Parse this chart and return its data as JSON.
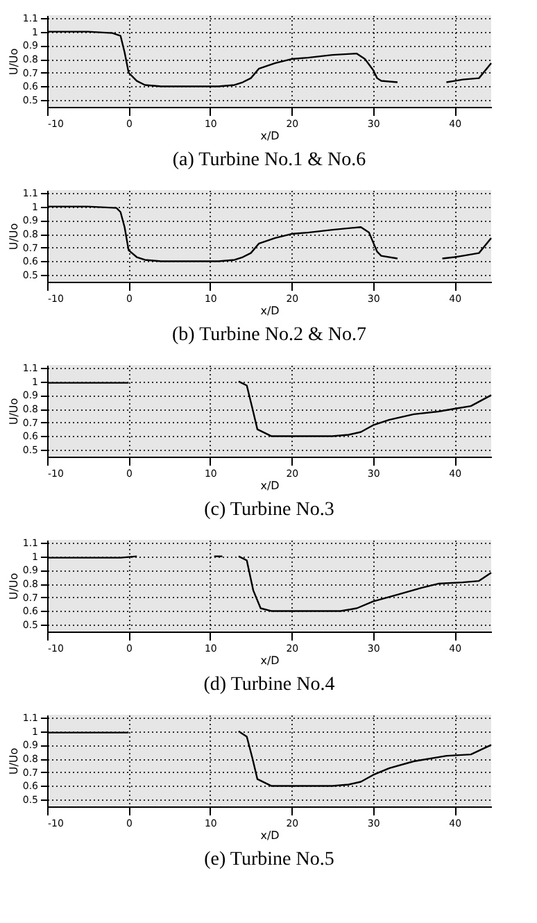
{
  "chart_data": [
    {
      "type": "line",
      "title": "(a)  Turbine No.1  & No.6",
      "xlabel": "x/D",
      "ylabel": "U/Uo",
      "xlim": [
        -10,
        44.5
      ],
      "xticks": [
        -10,
        0,
        10,
        20,
        30,
        40
      ],
      "ylim": [
        0.45,
        1.12
      ],
      "yticks": [
        1.1,
        1,
        0.9,
        0.8,
        0.7,
        0.6,
        0.5
      ],
      "grid": true,
      "line_style": "solid",
      "marker": "none",
      "series": [
        {
          "color": "#000000",
          "x": [
            -10,
            -5,
            -2,
            -1,
            -0.5,
            0,
            1,
            2,
            4,
            8,
            11,
            13,
            14,
            15,
            16,
            18,
            20,
            22,
            25,
            28,
            29,
            30,
            30.5,
            31,
            33,
            36,
            39,
            40,
            41,
            43,
            44.5
          ],
          "values": [
            1.0,
            1.0,
            0.99,
            0.97,
            0.85,
            0.7,
            0.64,
            0.61,
            0.6,
            0.6,
            0.6,
            0.61,
            0.63,
            0.66,
            0.73,
            0.77,
            0.8,
            0.81,
            0.83,
            0.84,
            0.8,
            0.72,
            0.66,
            0.64,
            0.63,
            null,
            0.63,
            0.64,
            0.65,
            0.66,
            0.77
          ]
        }
      ]
    },
    {
      "type": "line",
      "title": "(b)  Turbine No.2  & No.7",
      "xlabel": "x/D",
      "ylabel": "U/Uo",
      "xlim": [
        -10,
        44.5
      ],
      "xticks": [
        -10,
        0,
        10,
        20,
        30,
        40
      ],
      "ylim": [
        0.45,
        1.12
      ],
      "yticks": [
        1.1,
        1,
        0.9,
        0.8,
        0.7,
        0.6,
        0.5
      ],
      "grid": true,
      "line_style": "solid",
      "marker": "none",
      "series": [
        {
          "color": "#000000",
          "x": [
            -10,
            -5,
            -1.5,
            -1,
            -0.5,
            0,
            1,
            2,
            4,
            8,
            11,
            13,
            14,
            15,
            16,
            18,
            20,
            22,
            25,
            28.5,
            29.5,
            30,
            30.5,
            31,
            33,
            36,
            38.5,
            40,
            41,
            43,
            44.5
          ],
          "values": [
            1.0,
            1.0,
            0.99,
            0.96,
            0.85,
            0.68,
            0.63,
            0.61,
            0.6,
            0.6,
            0.6,
            0.61,
            0.63,
            0.66,
            0.73,
            0.77,
            0.8,
            0.81,
            0.83,
            0.85,
            0.81,
            0.74,
            0.67,
            0.64,
            0.62,
            null,
            0.62,
            0.63,
            0.64,
            0.66,
            0.77
          ]
        }
      ]
    },
    {
      "type": "line",
      "title": "(c)  Turbine No.3",
      "xlabel": "x/D",
      "ylabel": "U/Uo",
      "xlim": [
        -10,
        44.5
      ],
      "xticks": [
        -10,
        0,
        10,
        20,
        30,
        40
      ],
      "ylim": [
        0.45,
        1.12
      ],
      "yticks": [
        1.1,
        1,
        0.9,
        0.8,
        0.7,
        0.6,
        0.5
      ],
      "grid": true,
      "line_style": "solid",
      "marker": "none",
      "series": [
        {
          "color": "#000000",
          "x": [
            -10,
            -5,
            0,
            7,
            13.5,
            14.5,
            15.2,
            15.8,
            17.5,
            20,
            25,
            27,
            28.5,
            30,
            32,
            35,
            38,
            40,
            42,
            44.5
          ],
          "values": [
            0.99,
            0.99,
            0.99,
            null,
            1.0,
            0.97,
            0.8,
            0.65,
            0.6,
            0.6,
            0.6,
            0.61,
            0.63,
            0.68,
            0.72,
            0.76,
            0.78,
            0.8,
            0.82,
            0.9
          ]
        }
      ]
    },
    {
      "type": "line",
      "title": "(d)  Turbine No.4",
      "xlabel": "x/D",
      "ylabel": "U/Uo",
      "xlim": [
        -10,
        44.5
      ],
      "xticks": [
        -10,
        0,
        10,
        20,
        30,
        40
      ],
      "ylim": [
        0.45,
        1.12
      ],
      "yticks": [
        1.1,
        1,
        0.9,
        0.8,
        0.7,
        0.6,
        0.5
      ],
      "grid": true,
      "line_style": "solid",
      "marker": "none",
      "series": [
        {
          "color": "#000000",
          "x": [
            -10,
            -5,
            -1,
            1,
            6,
            10.5,
            11.5,
            12.5,
            13.5,
            14.5,
            15.3,
            16.2,
            17.5,
            20,
            26,
            28,
            30,
            33,
            36,
            38,
            41,
            43,
            44.5
          ],
          "values": [
            0.99,
            0.99,
            0.99,
            1.0,
            null,
            1.0,
            1.0,
            null,
            1.0,
            0.97,
            0.75,
            0.62,
            0.6,
            0.6,
            0.6,
            0.62,
            0.67,
            0.72,
            0.77,
            0.8,
            0.81,
            0.82,
            0.88
          ]
        }
      ]
    },
    {
      "type": "line",
      "title": "(e)  Turbine No.5",
      "xlabel": "x/D",
      "ylabel": "U/Uo",
      "xlim": [
        -10,
        44.5
      ],
      "xticks": [
        -10,
        0,
        10,
        20,
        30,
        40
      ],
      "ylim": [
        0.45,
        1.12
      ],
      "yticks": [
        1.1,
        1,
        0.9,
        0.8,
        0.7,
        0.6,
        0.5
      ],
      "grid": true,
      "line_style": "solid",
      "marker": "none",
      "series": [
        {
          "color": "#000000",
          "x": [
            -10,
            -5,
            0,
            7,
            13.5,
            14.5,
            15.2,
            15.8,
            17.5,
            20,
            25,
            27,
            28.5,
            30,
            32,
            35,
            39,
            42,
            44.5
          ],
          "values": [
            0.99,
            0.99,
            0.99,
            null,
            1.0,
            0.96,
            0.8,
            0.65,
            0.6,
            0.6,
            0.6,
            0.61,
            0.63,
            0.68,
            0.73,
            0.78,
            0.82,
            0.83,
            0.9
          ]
        }
      ]
    }
  ]
}
